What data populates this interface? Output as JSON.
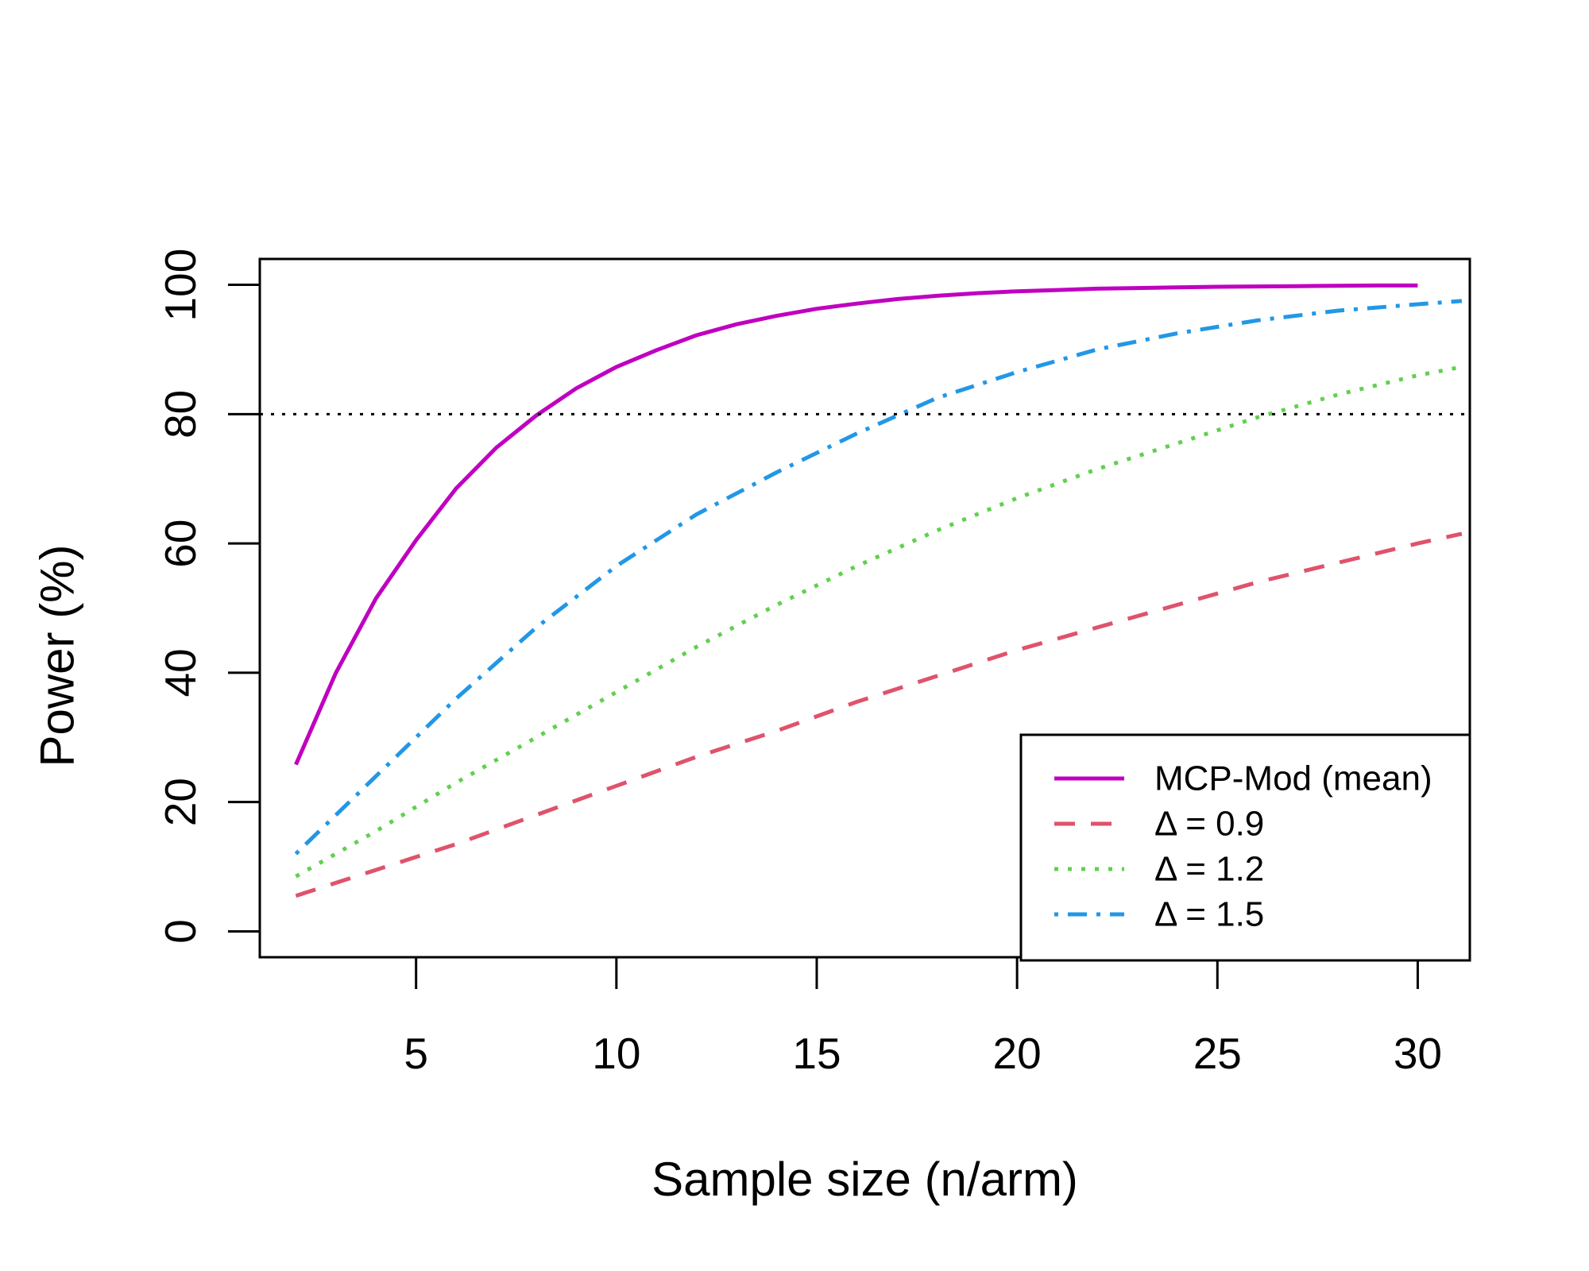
{
  "chart_data": {
    "type": "line",
    "title": "",
    "xlabel": "Sample size (n/arm)",
    "ylabel": "Power (%)",
    "xlim": [
      1.1,
      31.3
    ],
    "ylim": [
      -4,
      104
    ],
    "x_ticks": [
      5,
      10,
      15,
      20,
      25,
      30
    ],
    "y_ticks": [
      0,
      20,
      40,
      60,
      80,
      100
    ],
    "x_tick_labels": [
      "5",
      "10",
      "15",
      "20",
      "25",
      "30"
    ],
    "y_tick_labels": [
      "0",
      "20",
      "40",
      "60",
      "80",
      "100"
    ],
    "reference_line": {
      "y": 80,
      "style": "dotted",
      "color": "#000000"
    },
    "grid": false,
    "legend_position": "bottom-right",
    "series": [
      {
        "name": "MCP-Mod (mean)",
        "color": "#C000C0",
        "style": "solid",
        "x": [
          2,
          3,
          4,
          5,
          6,
          7,
          8,
          9,
          10,
          11,
          12,
          13,
          14,
          15,
          16,
          17,
          18,
          19,
          20,
          21,
          22,
          23,
          24,
          25,
          26,
          27,
          28,
          29,
          30
        ],
        "y": [
          25.8,
          40,
          51.5,
          60.5,
          68.5,
          74.8,
          79.8,
          84,
          87.3,
          89.9,
          92.2,
          93.9,
          95.2,
          96.3,
          97.1,
          97.8,
          98.3,
          98.7,
          99.0,
          99.2,
          99.4,
          99.5,
          99.6,
          99.7,
          99.75,
          99.8,
          99.85,
          99.9,
          99.9
        ]
      },
      {
        "name": "Δ = 0.9",
        "color": "#DF536B",
        "style": "dashed",
        "x": [
          2,
          4,
          6,
          8,
          10,
          12,
          14,
          16,
          18,
          20,
          22,
          24,
          26,
          28,
          30,
          31.1
        ],
        "y": [
          5.5,
          9.5,
          13.5,
          18,
          22.5,
          27,
          31,
          35.5,
          39.5,
          43.5,
          47,
          50.5,
          54,
          57,
          60,
          61.5
        ]
      },
      {
        "name": "Δ = 1.2",
        "color": "#61D04F",
        "style": "dotted",
        "x": [
          2,
          4,
          6,
          8,
          10,
          12,
          14,
          16,
          18,
          20,
          22,
          24,
          26,
          28,
          30,
          31.1
        ],
        "y": [
          8.5,
          15.5,
          23,
          30,
          37,
          44,
          50.5,
          56.5,
          62,
          67,
          71.5,
          75.5,
          79.5,
          83,
          86,
          87.3
        ]
      },
      {
        "name": "Δ = 1.5",
        "color": "#2297E6",
        "style": "dashdot",
        "x": [
          2,
          4,
          6,
          8,
          10,
          12,
          14,
          16,
          18,
          20,
          22,
          24,
          26,
          28,
          30,
          31.1
        ],
        "y": [
          12,
          24,
          36,
          47,
          56.5,
          64.5,
          71,
          77,
          82.5,
          86.5,
          90,
          92.5,
          94.5,
          96,
          97,
          97.5
        ]
      }
    ],
    "legend": {
      "entries": [
        "MCP-Mod (mean)",
        "Δ = 0.9",
        "Δ = 1.2",
        "Δ = 1.5"
      ]
    }
  }
}
